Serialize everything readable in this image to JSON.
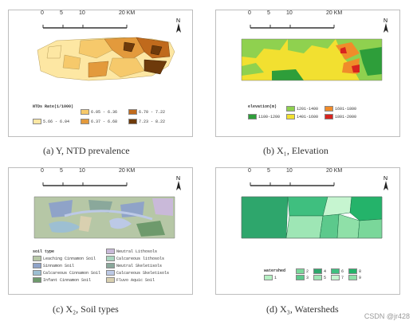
{
  "scale_bar": {
    "ticks": [
      "0",
      "5",
      "10",
      "20 KM"
    ]
  },
  "north_label": "N",
  "panels": [
    {
      "id": "a",
      "caption": "(a) Y, NTD prevalence",
      "legend_title": "NTDs Rate(1/1000)",
      "legend": [
        {
          "label": "5.66 - 6.04",
          "color": "#fde7a3"
        },
        {
          "label": "6.05 - 6.36",
          "color": "#f6c96b"
        },
        {
          "label": "6.37 - 6.68",
          "color": "#e39a3c"
        },
        {
          "label": "6.70 - 7.22",
          "color": "#c06a1c"
        },
        {
          "label": "7.23 - 8.22",
          "color": "#6e3a0b"
        }
      ]
    },
    {
      "id": "b",
      "caption": "(b) X₁, Elevation",
      "legend_title": "elevation(m)",
      "legend": [
        {
          "label": "1100-1200",
          "color": "#2e9e3a"
        },
        {
          "label": "1201-1400",
          "color": "#8fd14f"
        },
        {
          "label": "1401-1600",
          "color": "#f2e030"
        },
        {
          "label": "1601-1800",
          "color": "#f08c2a"
        },
        {
          "label": "1801-2000",
          "color": "#d8241f"
        }
      ]
    },
    {
      "id": "c",
      "caption": "(c) X₂, Soil types",
      "legend_title": "soil type",
      "legend": [
        {
          "label": "Leaching Cinnamon Soil",
          "color": "#b6c7a6"
        },
        {
          "label": "Sinnamon Soil",
          "color": "#8fa3c8"
        },
        {
          "label": "Calcareous Cinnamon Soil",
          "color": "#9dbfd2"
        },
        {
          "label": "Infant Cinnamon Soil",
          "color": "#6e9a6c"
        },
        {
          "label": "Neutral Lithosols",
          "color": "#c9b9d9"
        },
        {
          "label": "Calcareous lithosols",
          "color": "#a9d6c0"
        },
        {
          "label": "Neutral Skeletisols",
          "color": "#8aa89b"
        },
        {
          "label": "Calcareous Skeletisols",
          "color": "#bcc9e6"
        },
        {
          "label": "Fluvo Aquic Soil",
          "color": "#d9d0b0"
        }
      ]
    },
    {
      "id": "d",
      "caption": "(d) X₃, Watersheds",
      "legend_title": "watershed",
      "legend": [
        {
          "label": "1",
          "color": "#b5f0c3"
        },
        {
          "label": "2",
          "color": "#7ad79a"
        },
        {
          "label": "3",
          "color": "#5cc98c"
        },
        {
          "label": "4",
          "color": "#2ea66c"
        },
        {
          "label": "5",
          "color": "#9ee6b5"
        },
        {
          "label": "6",
          "color": "#3fbf7f"
        },
        {
          "label": "7",
          "color": "#c6f5d0"
        },
        {
          "label": "8",
          "color": "#24b36a"
        },
        {
          "label": "9",
          "color": "#8fe0a8"
        }
      ]
    }
  ],
  "watermark": "CSDN @jr428"
}
